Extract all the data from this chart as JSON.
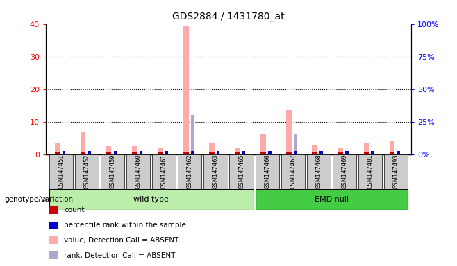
{
  "title": "GDS2884 / 1431780_at",
  "samples": [
    "GSM147451",
    "GSM147452",
    "GSM147459",
    "GSM147460",
    "GSM147461",
    "GSM147462",
    "GSM147463",
    "GSM147465",
    "GSM147466",
    "GSM147467",
    "GSM147468",
    "GSM147469",
    "GSM147481",
    "GSM147493"
  ],
  "count_values": [
    3.5,
    7.0,
    2.5,
    2.5,
    2.0,
    39.5,
    3.5,
    2.0,
    6.0,
    13.5,
    3.0,
    2.0,
    3.5,
    4.0
  ],
  "rank_values": [
    1.0,
    1.0,
    1.0,
    1.0,
    1.0,
    12.0,
    1.0,
    1.0,
    1.0,
    6.0,
    1.0,
    1.0,
    1.0,
    1.0
  ],
  "wild_type_count": 8,
  "emd_null_count": 6,
  "ylim_left": [
    0,
    40
  ],
  "ylim_right": [
    0,
    100
  ],
  "yticks_left": [
    0,
    10,
    20,
    30,
    40
  ],
  "yticks_right": [
    0,
    25,
    50,
    75,
    100
  ],
  "ytick_labels_left": [
    "0",
    "10",
    "20",
    "30",
    "40"
  ],
  "ytick_labels_right": [
    "0%",
    "25%",
    "50%",
    "75%",
    "100%"
  ],
  "color_count": "#cc0000",
  "color_rank": "#0000cc",
  "color_count_absent": "#ffaaaa",
  "color_rank_absent": "#aaaacc",
  "color_wildtype_light": "#bbeeaa",
  "color_wildtype_dark": "#66cc44",
  "color_emdnull": "#44cc44",
  "color_box_bg": "#cccccc",
  "legend_items": [
    {
      "label": "count",
      "color": "#cc0000"
    },
    {
      "label": "percentile rank within the sample",
      "color": "#0000cc"
    },
    {
      "label": "value, Detection Call = ABSENT",
      "color": "#ffaaaa"
    },
    {
      "label": "rank, Detection Call = ABSENT",
      "color": "#aaaacc"
    }
  ],
  "xlabel_genotype": "genotype/variation",
  "label_wildtype": "wild type",
  "label_emdnull": "EMD null"
}
